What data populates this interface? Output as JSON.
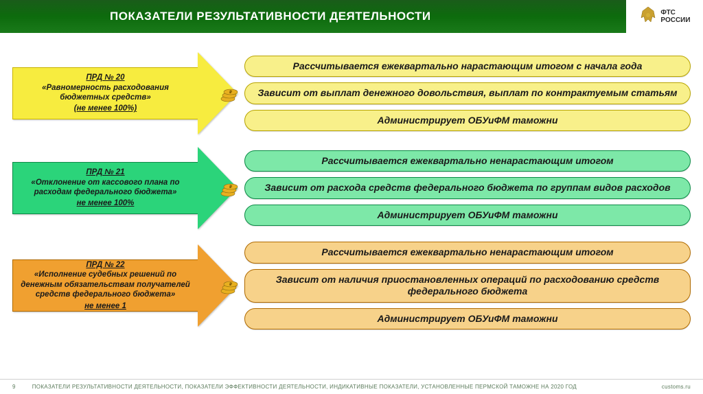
{
  "header": {
    "title": "ПОКАЗАТЕЛИ РЕЗУЛЬТАТИВНОСТИ ДЕЯТЕЛЬНОСТИ",
    "logo_line1": "ФТС",
    "logo_line2": "РОССИИ"
  },
  "groups": [
    {
      "arrow": {
        "title": "ПРД № 20",
        "body": "«Равномерность расходования бюджетных средств»",
        "condition": "(не менее 100%)",
        "fill": "#f7ec3f",
        "border": "#c9b400"
      },
      "bars": [
        {
          "text": "Рассчитывается ежеквартально нарастающим итогом с начала года"
        },
        {
          "text": "Зависит от выплат денежного довольствия, выплат по контрактуемым статьям"
        },
        {
          "text": "Администрирует ОБУиФМ таможни"
        }
      ],
      "bar_style": {
        "bg": "#f8f08a",
        "border": "#b8a400"
      }
    },
    {
      "arrow": {
        "title": "ПРД № 21",
        "body": "«Отклонение от кассового плана по расходам федерального бюджета»",
        "condition": "не менее 100%",
        "fill": "#2bd47a",
        "border": "#0a8a45"
      },
      "bars": [
        {
          "text": "Рассчитывается ежеквартально ненарастающим итогом"
        },
        {
          "text": "Зависит от расхода средств федерального бюджета по группам видов расходов"
        },
        {
          "text": "Администрирует ОБУиФМ таможни"
        }
      ],
      "bar_style": {
        "bg": "#7de8a8",
        "border": "#0a8a45"
      }
    },
    {
      "arrow": {
        "title": "ПРД № 22",
        "body": "«Исполнение судебных решений по денежным обязательствам получателей средств федерального бюджета»",
        "condition": "не менее 1",
        "fill": "#f0a030",
        "border": "#b06a00"
      },
      "bars": [
        {
          "text": "Рассчитывается ежеквартально ненарастающим итогом"
        },
        {
          "text": "Зависит от наличия приостановленных операций по расходованию средств федерального бюджета"
        },
        {
          "text": "Администрирует ОБУиФМ таможни"
        }
      ],
      "bar_style": {
        "bg": "#f7d28a",
        "border": "#b06a00"
      }
    }
  ],
  "footer": {
    "page": "9",
    "text": "ПОКАЗАТЕЛИ РЕЗУЛЬТАТИВНОСТИ ДЕЯТЕЛЬНОСТИ, ПОКАЗАТЕЛИ ЭФФЕКТИВНОСТИ ДЕЯТЕЛЬНОСТИ, ИНДИКАТИВНЫЕ ПОКАЗАТЕЛИ, УСТАНОВЛЕННЫЕ ПЕРМСКОЙ ТАМОЖНЕ НА 2020 ГОД",
    "url": "customs.ru"
  },
  "colors": {
    "header_bg": "#156b15",
    "coin": "#e8b020"
  }
}
